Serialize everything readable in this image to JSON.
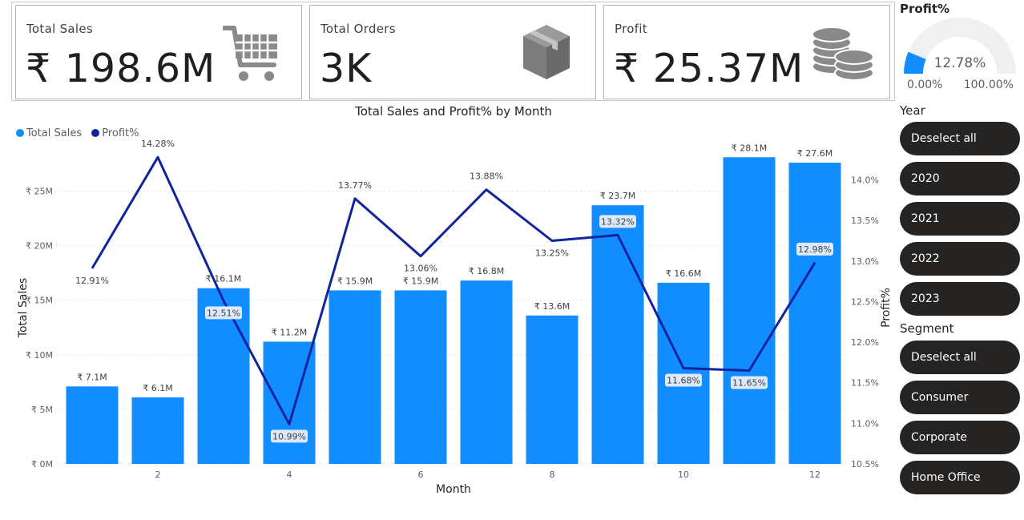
{
  "kpis": [
    {
      "title": "Total Sales",
      "value": "₹ 198.6M",
      "icon": "shopping-cart-icon"
    },
    {
      "title": "Total Orders",
      "value": "3K",
      "icon": "package-box-icon"
    },
    {
      "title": "Profit",
      "value": "₹ 25.37M",
      "icon": "coins-stack-icon"
    }
  ],
  "gauge": {
    "title": "Profit%",
    "value_label": "12.78%",
    "value": 12.78,
    "min": 0,
    "max": 100,
    "min_label": "0.00%",
    "max_label": "100.00%",
    "fill_color": "#118DFF",
    "track_color": "#F0F0F0"
  },
  "slicers": {
    "year": {
      "title": "Year",
      "items": [
        "Deselect all",
        "2020",
        "2021",
        "2022",
        "2023"
      ]
    },
    "segment": {
      "title": "Segment",
      "items": [
        "Deselect all",
        "Consumer",
        "Corporate",
        "Home Office"
      ]
    }
  },
  "chart_data": {
    "type": "bar",
    "title": "Total Sales and Profit% by Month",
    "xlabel": "Month",
    "ylabel": "Total Sales",
    "y2label": "Profit%",
    "categories": [
      1,
      2,
      3,
      4,
      5,
      6,
      7,
      8,
      9,
      10,
      11,
      12
    ],
    "x_tick_labels": [
      "2",
      "4",
      "6",
      "8",
      "10",
      "12"
    ],
    "x_ticks": [
      2,
      4,
      6,
      8,
      10,
      12
    ],
    "ylim": [
      0,
      29
    ],
    "y_ticks": [
      0,
      5,
      10,
      15,
      20,
      25
    ],
    "y_tick_labels": [
      "₹ 0M",
      "₹ 5M",
      "₹ 10M",
      "₹ 15M",
      "₹ 20M",
      "₹ 25M"
    ],
    "y2lim": [
      10.5,
      14.4
    ],
    "y2_ticks": [
      10.5,
      11,
      11.5,
      12,
      12.5,
      13,
      13.5,
      14
    ],
    "y2_tick_labels": [
      "10.5%",
      "11.0%",
      "11.5%",
      "12.0%",
      "12.5%",
      "13.0%",
      "13.5%",
      "14.0%"
    ],
    "grid": true,
    "legend_position": "top-left",
    "series": [
      {
        "name": "Total Sales",
        "type": "bar",
        "axis": "left",
        "color": "#118DFF",
        "values": [
          7.1,
          6.1,
          16.1,
          11.2,
          15.9,
          15.9,
          16.8,
          13.6,
          23.7,
          16.6,
          28.1,
          27.6
        ],
        "labels": [
          "₹ 7.1M",
          "₹ 6.1M",
          "₹ 16.1M",
          "₹ 11.2M",
          "₹ 15.9M",
          "₹ 15.9M",
          "₹ 16.8M",
          "₹ 13.6M",
          "₹ 23.7M",
          "₹ 16.6M",
          "₹ 28.1M",
          "₹ 27.6M"
        ]
      },
      {
        "name": "Profit%",
        "type": "line",
        "axis": "right",
        "color": "#12239E",
        "values": [
          12.91,
          14.28,
          12.51,
          10.99,
          13.77,
          13.06,
          13.88,
          13.25,
          13.32,
          11.68,
          11.65,
          12.98
        ],
        "labels": [
          "12.91%",
          "14.28%",
          "12.51%",
          "10.99%",
          "13.77%",
          "13.06%",
          "13.88%",
          "13.25%",
          "13.32%",
          "11.68%",
          "11.65%",
          "12.98%"
        ]
      }
    ]
  }
}
